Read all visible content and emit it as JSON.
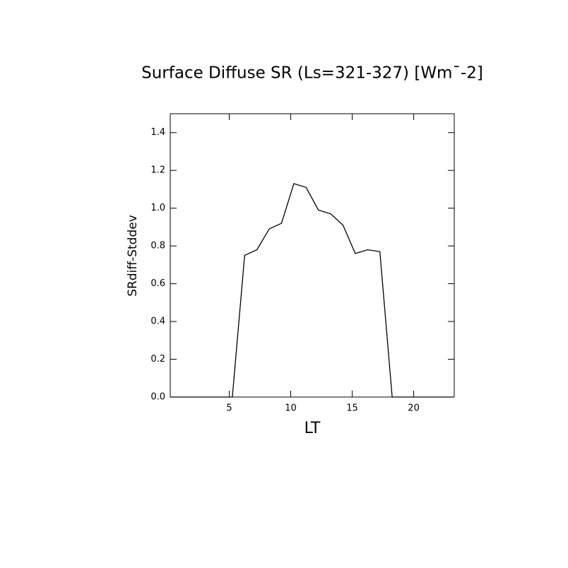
{
  "chart_data": {
    "type": "line",
    "title": "Surface Diffuse SR (Ls=321-327) [Wm¯-2]",
    "x_label": "LT",
    "y_label": "SRdiff-Stddev",
    "x": [
      0.25,
      1.25,
      2.25,
      3.25,
      4.25,
      5.25,
      6.25,
      7.25,
      8.25,
      9.25,
      10.25,
      11.25,
      12.25,
      13.25,
      14.25,
      15.25,
      16.25,
      17.25,
      18.25,
      19.25,
      20.25,
      21.25,
      22.25,
      23.25
    ],
    "series": [
      {
        "name": "SRdiff-Stddev",
        "color": "#000000",
        "values": [
          0,
          0,
          0,
          0,
          0,
          0,
          0.75,
          0.78,
          0.89,
          0.92,
          1.13,
          1.11,
          0.99,
          0.97,
          0.91,
          0.76,
          0.78,
          0.77,
          0,
          0,
          0,
          0,
          0,
          0
        ]
      }
    ],
    "xlim": [
      0.2,
      23.3
    ],
    "xticks": [
      5,
      10,
      15,
      20
    ],
    "ylim": [
      0,
      1.5
    ],
    "yticks": [
      {
        "value": 0,
        "label": "0.0"
      },
      {
        "value": 0.2,
        "label": "0.2"
      },
      {
        "value": 0.4,
        "label": "0.4"
      },
      {
        "value": 0.6,
        "label": "0.6"
      },
      {
        "value": 0.8,
        "label": "0.8"
      },
      {
        "value": 1.0,
        "label": "1.0"
      },
      {
        "value": 1.2,
        "label": "1.2"
      },
      {
        "value": 1.4,
        "label": "1.4"
      }
    ]
  }
}
